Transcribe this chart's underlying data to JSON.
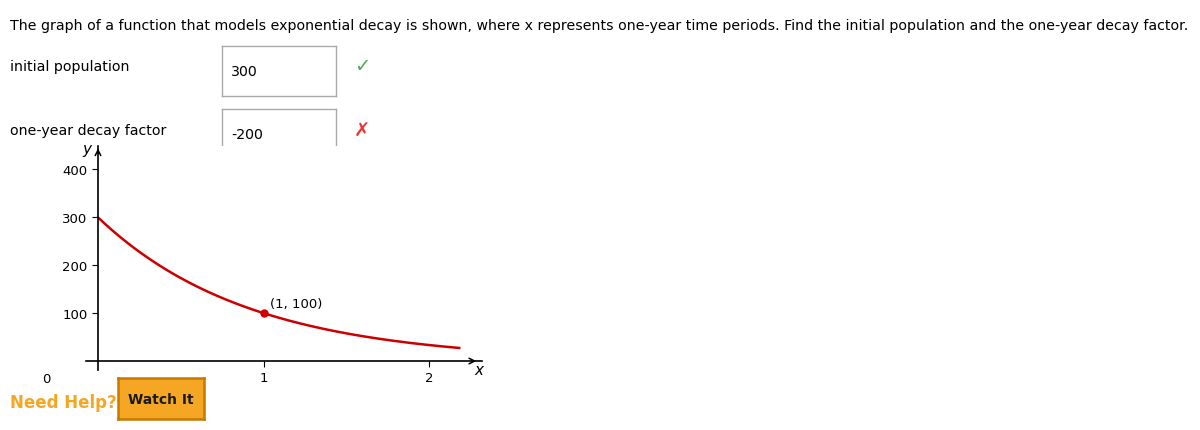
{
  "title_text": "The graph of a function that models exponential decay is shown, where x represents one-year time periods. Find the initial population and the one-year decay factor.",
  "label1": "initial population",
  "label2": "one-year decay factor",
  "answer1": "300",
  "answer2": "-200",
  "check_color": "#4caf50",
  "cross_color": "#e53935",
  "curve_color": "#cc0000",
  "point_x": 1,
  "point_y": 100,
  "point_label": "(1, 100)",
  "initial_pop": 300,
  "decay_factor": 0.3333,
  "y_max": 450,
  "y_ticks": [
    100,
    200,
    300,
    400
  ],
  "x_ticks": [
    1,
    2
  ],
  "axis_label_x": "x",
  "axis_label_y": "y",
  "need_help_color": "#f5a623",
  "watch_it_bg": "#f5a623",
  "watch_it_border": "#c87800",
  "watch_it_text": "Watch It",
  "need_help_text": "Need Help?",
  "bg_color": "#ffffff",
  "zero_label": "0"
}
